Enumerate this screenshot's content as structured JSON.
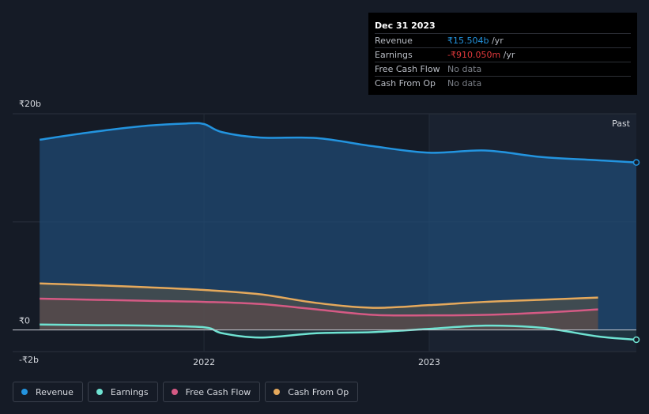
{
  "tooltip": {
    "date": "Dec 31 2023",
    "rows": [
      {
        "label": "Revenue",
        "value": "₹15.504b",
        "unit": " /yr",
        "color": "#2394df"
      },
      {
        "label": "Earnings",
        "value": "-₹910.050m",
        "unit": " /yr",
        "color": "#e0393b"
      },
      {
        "label": "Free Cash Flow",
        "value": "No data",
        "unit": ""
      },
      {
        "label": "Cash From Op",
        "value": "No data",
        "unit": ""
      }
    ]
  },
  "legend": [
    {
      "label": "Revenue",
      "color": "#2394df"
    },
    {
      "label": "Earnings",
      "color": "#6fe3d2"
    },
    {
      "label": "Free Cash Flow",
      "color": "#d55a84"
    },
    {
      "label": "Cash From Op",
      "color": "#e5a95c"
    }
  ],
  "chart_data": {
    "type": "line",
    "title": "",
    "xlabel": "",
    "ylabel": "",
    "unit": "₹ billion",
    "x_tick_labels": [
      {
        "t": 2022.0,
        "label": "2022"
      },
      {
        "t": 2023.0,
        "label": "2023"
      }
    ],
    "y_tick_labels": [
      {
        "v": 20,
        "label": "₹20b"
      },
      {
        "v": 0,
        "label": "₹0"
      },
      {
        "v": -2,
        "label": "-₹2b"
      }
    ],
    "ylim": [
      -2,
      20
    ],
    "xlim": [
      2021.15,
      2023.92
    ],
    "past_label": "Past",
    "past_start": 2023.0,
    "series": [
      {
        "name": "Revenue",
        "color": "#2394df",
        "x": [
          2021.27,
          2021.5,
          2021.75,
          2021.92,
          2022.0,
          2022.08,
          2022.25,
          2022.5,
          2022.75,
          2023.0,
          2023.25,
          2023.5,
          2023.75,
          2023.92
        ],
        "y": [
          17.6,
          18.3,
          18.9,
          19.1,
          19.05,
          18.3,
          17.8,
          17.75,
          17.0,
          16.4,
          16.6,
          16.0,
          15.7,
          15.5
        ]
      },
      {
        "name": "Earnings",
        "color": "#6fe3d2",
        "x": [
          2021.27,
          2021.5,
          2021.75,
          2022.0,
          2022.08,
          2022.25,
          2022.5,
          2022.75,
          2023.0,
          2023.25,
          2023.5,
          2023.75,
          2023.92
        ],
        "y": [
          0.5,
          0.45,
          0.4,
          0.25,
          -0.3,
          -0.7,
          -0.3,
          -0.2,
          0.1,
          0.4,
          0.2,
          -0.6,
          -0.9
        ]
      },
      {
        "name": "Free Cash Flow",
        "color": "#d55a84",
        "x": [
          2021.27,
          2021.5,
          2021.75,
          2022.0,
          2022.25,
          2022.5,
          2022.75,
          2023.0,
          2023.25,
          2023.5,
          2023.75
        ],
        "y": [
          2.9,
          2.8,
          2.7,
          2.6,
          2.4,
          1.9,
          1.4,
          1.35,
          1.4,
          1.6,
          1.9
        ]
      },
      {
        "name": "Cash From Op",
        "color": "#e5a95c",
        "x": [
          2021.27,
          2021.5,
          2021.75,
          2022.0,
          2022.25,
          2022.5,
          2022.75,
          2023.0,
          2023.25,
          2023.5,
          2023.75
        ],
        "y": [
          4.3,
          4.15,
          3.95,
          3.7,
          3.3,
          2.5,
          2.05,
          2.3,
          2.6,
          2.8,
          3.0
        ]
      }
    ]
  }
}
